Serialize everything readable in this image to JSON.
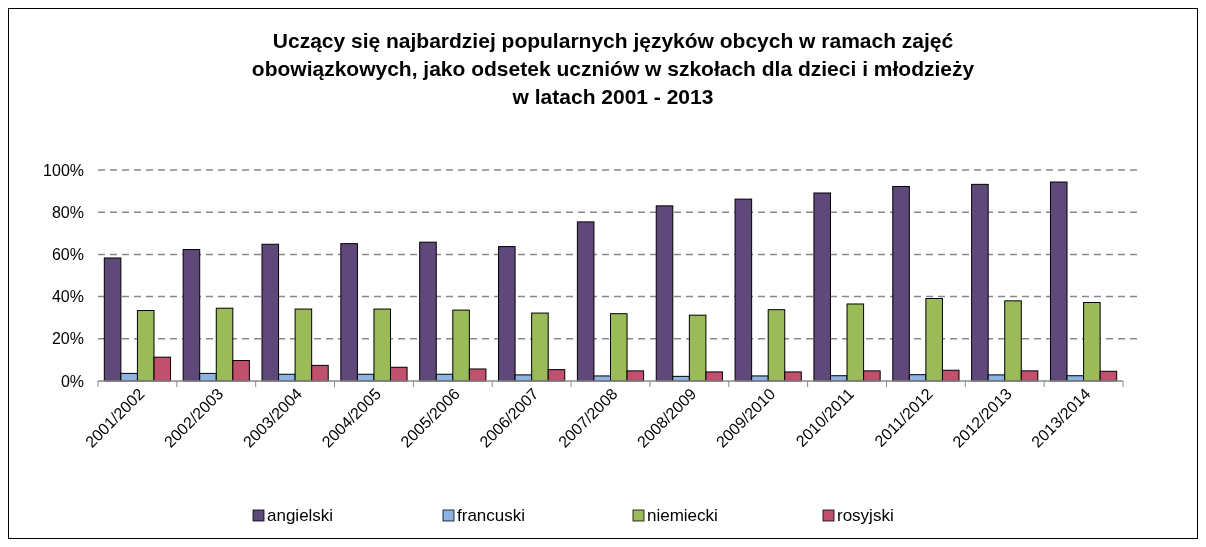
{
  "chart_data": {
    "type": "bar",
    "title": "Uczący się najbardziej popularnych języków obcych w ramach zajęć obowiązkowych, jako odsetek uczniów w szkołach dla dzieci i młodzieży w latach 2001 - 2013",
    "categories": [
      "2001/2002",
      "2002/2003",
      "2003/2004",
      "2004/2005",
      "2005/2006",
      "2006/2007",
      "2007/2008",
      "2008/2009",
      "2009/2010",
      "2010/2011",
      "2011/2012",
      "2012/2013",
      "2013/2014"
    ],
    "series": [
      {
        "name": "angielski",
        "color": "#5f497a",
        "values": [
          58.3,
          62.3,
          64.8,
          65.1,
          65.8,
          63.7,
          75.4,
          83.0,
          86.2,
          89.1,
          92.2,
          93.2,
          94.3
        ]
      },
      {
        "name": "francuski",
        "color": "#8db3e2",
        "values": [
          3.6,
          3.6,
          3.2,
          3.2,
          3.2,
          2.9,
          2.4,
          2.2,
          2.4,
          2.5,
          3.0,
          2.9,
          2.5
        ]
      },
      {
        "name": "niemiecki",
        "color": "#9bbb59",
        "values": [
          33.4,
          34.5,
          34.1,
          34.1,
          33.6,
          32.2,
          31.9,
          31.2,
          33.8,
          36.5,
          39.1,
          38.0,
          37.2
        ]
      },
      {
        "name": "rosyjski",
        "color": "#c0506e",
        "values": [
          11.3,
          9.7,
          7.4,
          6.5,
          5.7,
          5.4,
          4.8,
          4.3,
          4.3,
          4.8,
          5.1,
          4.8,
          4.6
        ]
      }
    ],
    "ylim": [
      0,
      100
    ],
    "yticks": [
      {
        "value": 0,
        "label": "0%"
      },
      {
        "value": 20,
        "label": "20%"
      },
      {
        "value": 40,
        "label": "40%"
      },
      {
        "value": 60,
        "label": "60%"
      },
      {
        "value": 80,
        "label": "80%"
      },
      {
        "value": 100,
        "label": "100%"
      }
    ],
    "grid": "y",
    "legend": "bottom"
  }
}
